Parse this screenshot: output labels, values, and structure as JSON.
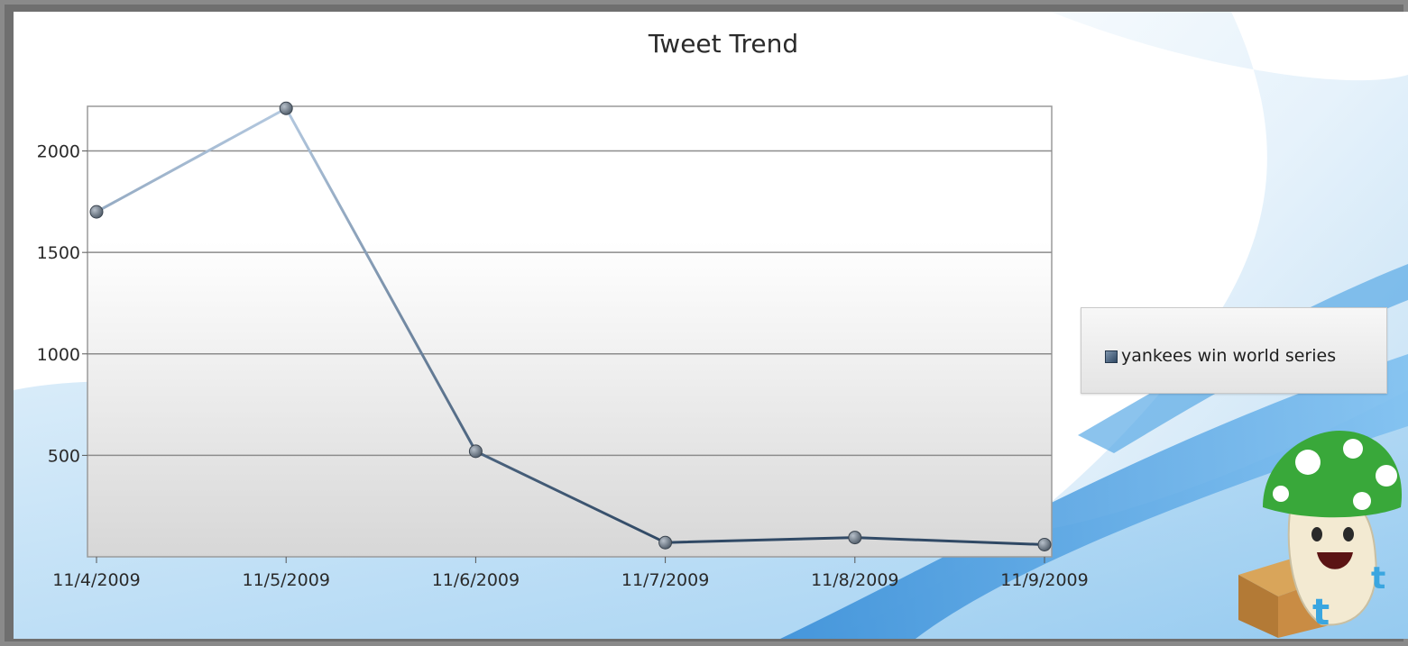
{
  "chart_data": {
    "type": "line",
    "title": "Tweet Trend",
    "xlabel": "",
    "ylabel": "",
    "categories": [
      "11/4/2009",
      "11/5/2009",
      "11/6/2009",
      "11/7/2009",
      "11/8/2009",
      "11/9/2009"
    ],
    "series": [
      {
        "name": "yankees win world series",
        "values": [
          1700,
          2210,
          520,
          70,
          95,
          60
        ]
      }
    ],
    "ylim": [
      0,
      2220
    ],
    "yticks": [
      "500",
      "1000",
      "1500",
      "2000"
    ],
    "grid": true,
    "legend_position": "right",
    "colors": {
      "line_dark": "#2f4864",
      "line_light": "#a9c1dc",
      "marker": "#6b7786",
      "grid": "#8c8c8c"
    }
  },
  "decor": {
    "mascot": "green-mushroom-mascot-with-box-and-twitter-icon"
  }
}
